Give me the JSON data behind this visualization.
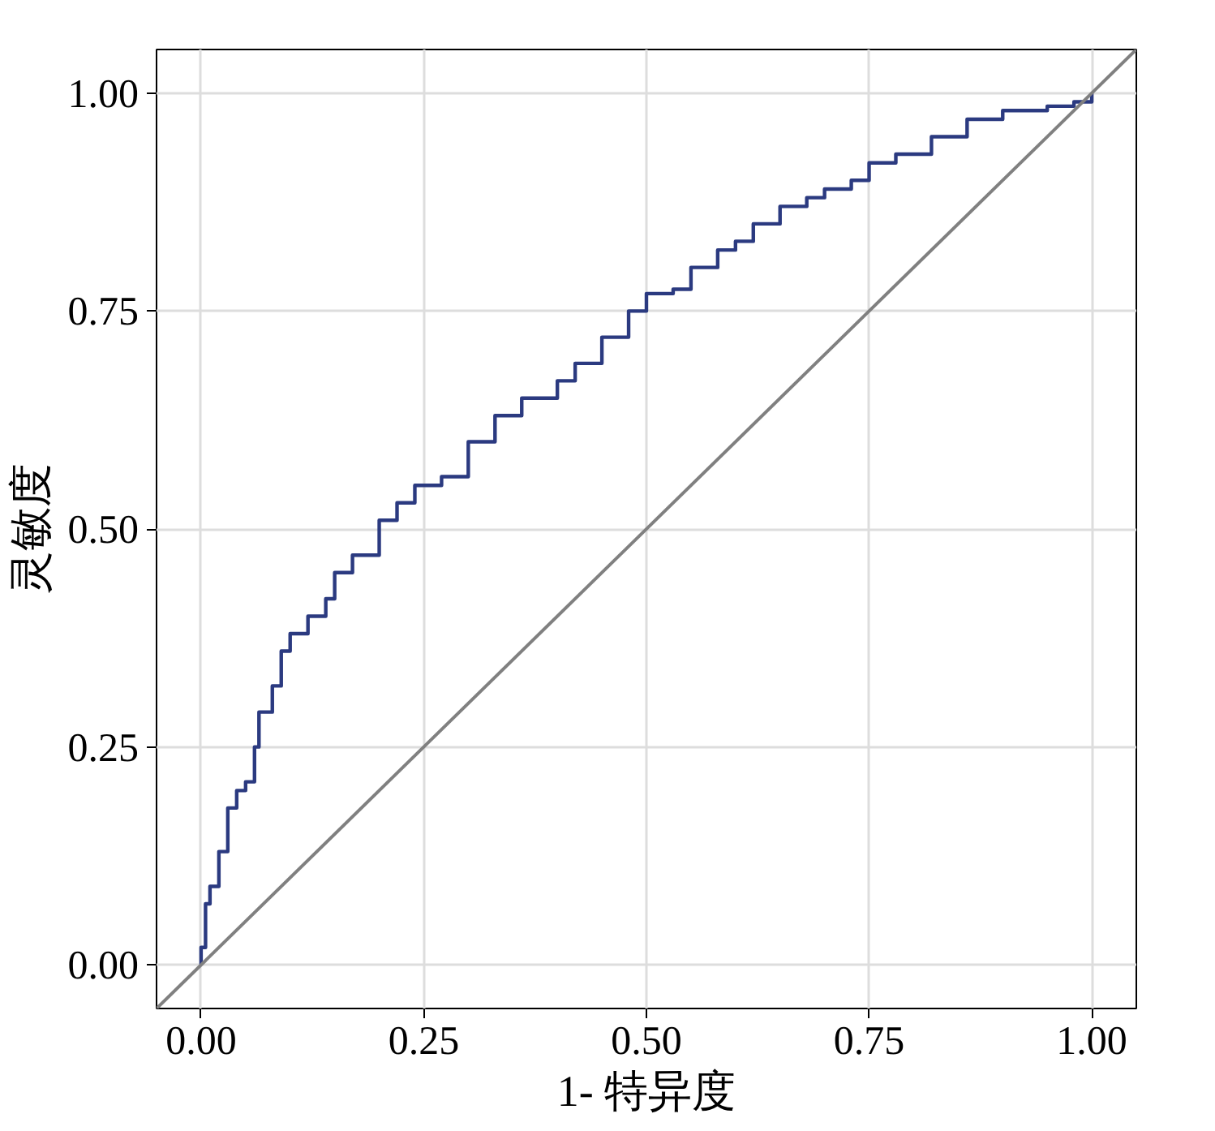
{
  "chart_data": {
    "type": "step",
    "xlabel": "1- 特异度",
    "ylabel": "灵敏度",
    "xlim": [
      -0.05,
      1.05
    ],
    "ylim": [
      -0.05,
      1.05
    ],
    "xticks": [
      {
        "value": 0,
        "label": "0.00"
      },
      {
        "value": 0.25,
        "label": "0.25"
      },
      {
        "value": 0.5,
        "label": "0.50"
      },
      {
        "value": 0.75,
        "label": "0.75"
      },
      {
        "value": 1,
        "label": "1.00"
      }
    ],
    "yticks": [
      {
        "value": 0,
        "label": "0.00"
      },
      {
        "value": 0.25,
        "label": "0.25"
      },
      {
        "value": 0.5,
        "label": "0.50"
      },
      {
        "value": 0.75,
        "label": "0.75"
      },
      {
        "value": 1,
        "label": "1.00"
      }
    ],
    "grid": true,
    "series": [
      {
        "color": "#2b3a80",
        "x": [
          0,
          0,
          0.005,
          0.01,
          0.02,
          0.03,
          0.04,
          0.05,
          0.06,
          0.065,
          0.08,
          0.09,
          0.1,
          0.12,
          0.14,
          0.15,
          0.17,
          0.2,
          0.22,
          0.24,
          0.27,
          0.3,
          0.33,
          0.36,
          0.4,
          0.42,
          0.45,
          0.48,
          0.5,
          0.53,
          0.55,
          0.58,
          0.6,
          0.62,
          0.65,
          0.68,
          0.7,
          0.73,
          0.75,
          0.78,
          0.82,
          0.86,
          0.9,
          0.95,
          0.98,
          1
        ],
        "values": [
          0,
          0.02,
          0.07,
          0.09,
          0.13,
          0.18,
          0.2,
          0.21,
          0.25,
          0.29,
          0.32,
          0.36,
          0.38,
          0.4,
          0.42,
          0.45,
          0.47,
          0.51,
          0.53,
          0.55,
          0.56,
          0.6,
          0.63,
          0.65,
          0.67,
          0.69,
          0.72,
          0.75,
          0.77,
          0.775,
          0.8,
          0.82,
          0.83,
          0.85,
          0.87,
          0.88,
          0.89,
          0.9,
          0.92,
          0.93,
          0.95,
          0.97,
          0.98,
          0.985,
          0.99,
          1
        ]
      },
      {
        "type": "line",
        "color": "#808080",
        "x": [
          -0.05,
          1.05
        ],
        "values": [
          -0.05,
          1.05
        ]
      }
    ]
  }
}
